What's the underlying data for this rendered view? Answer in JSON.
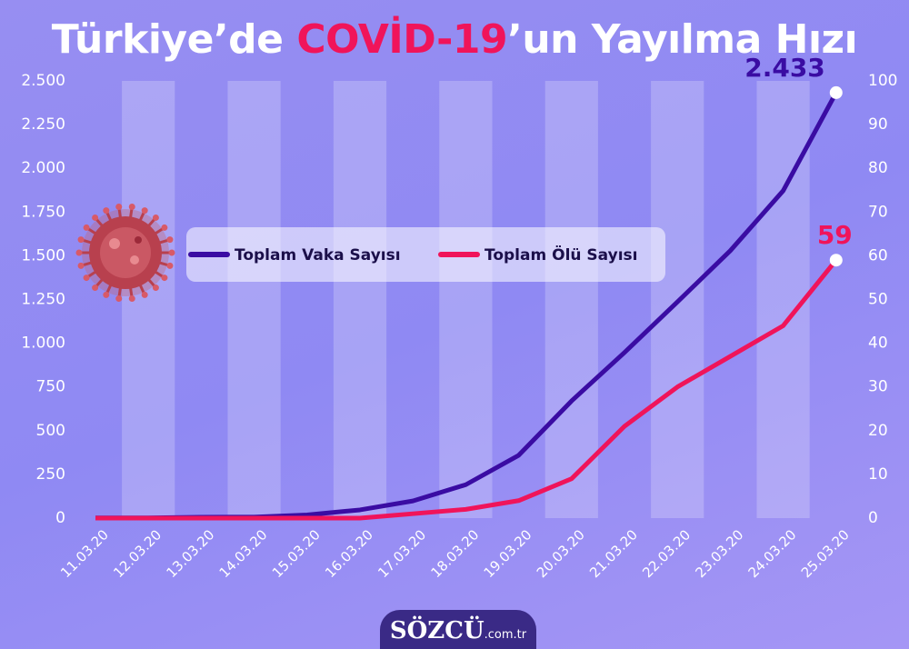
{
  "chart_data": {
    "type": "line",
    "title": [
      "Türkiye’de ",
      "COVİD-19",
      "’un Yayılma Hızı"
    ],
    "logo": [
      "SÖZCÜ",
      ".com.tr"
    ],
    "categories": [
      "11.03.20",
      "12.03.20",
      "13.03.20",
      "14.03.20",
      "15.03.20",
      "16.03.20",
      "17.03.20",
      "18.03.20",
      "19.03.20",
      "20.03.20",
      "21.03.20",
      "22.03.20",
      "23.03.20",
      "24.03.20",
      "25.03.20"
    ],
    "series": [
      {
        "name": "Toplam Vaka Sayısı",
        "color": "#3a0ca3",
        "values": [
          1,
          1,
          5,
          6,
          18,
          47,
          98,
          191,
          359,
          670,
          947,
          1236,
          1529,
          1872,
          2433
        ],
        "value_labels": [
          null,
          null,
          null,
          null,
          null,
          null,
          null,
          null,
          null,
          null,
          null,
          null,
          null,
          null,
          "2.433"
        ]
      },
      {
        "name": "Toplam Ölü Sayısı",
        "color": "#f0145a",
        "axis": "y2",
        "values": [
          0,
          0,
          0,
          0,
          0,
          0,
          1,
          2,
          4,
          9,
          21,
          30,
          37,
          44,
          59
        ],
        "value_labels": [
          null,
          null,
          null,
          null,
          null,
          null,
          null,
          null,
          null,
          null,
          null,
          null,
          null,
          null,
          "59"
        ]
      }
    ],
    "ylim": [
      0,
      2500
    ],
    "yticks": [
      0,
      250,
      500,
      750,
      {
        "value": 1000,
        "label": "1.000"
      },
      {
        "value": 1250,
        "label": "1.250"
      },
      {
        "value": 1500,
        "label": "1.500"
      },
      {
        "value": 1750,
        "label": "1.750"
      },
      {
        "value": 2000,
        "label": "2.000"
      },
      {
        "value": 2250,
        "label": "2.250"
      },
      {
        "value": 2500,
        "label": "2.500"
      }
    ],
    "y2lim": [
      0,
      100
    ],
    "y2ticks": [
      0,
      10,
      20,
      30,
      40,
      50,
      60,
      70,
      80,
      90,
      100
    ]
  }
}
